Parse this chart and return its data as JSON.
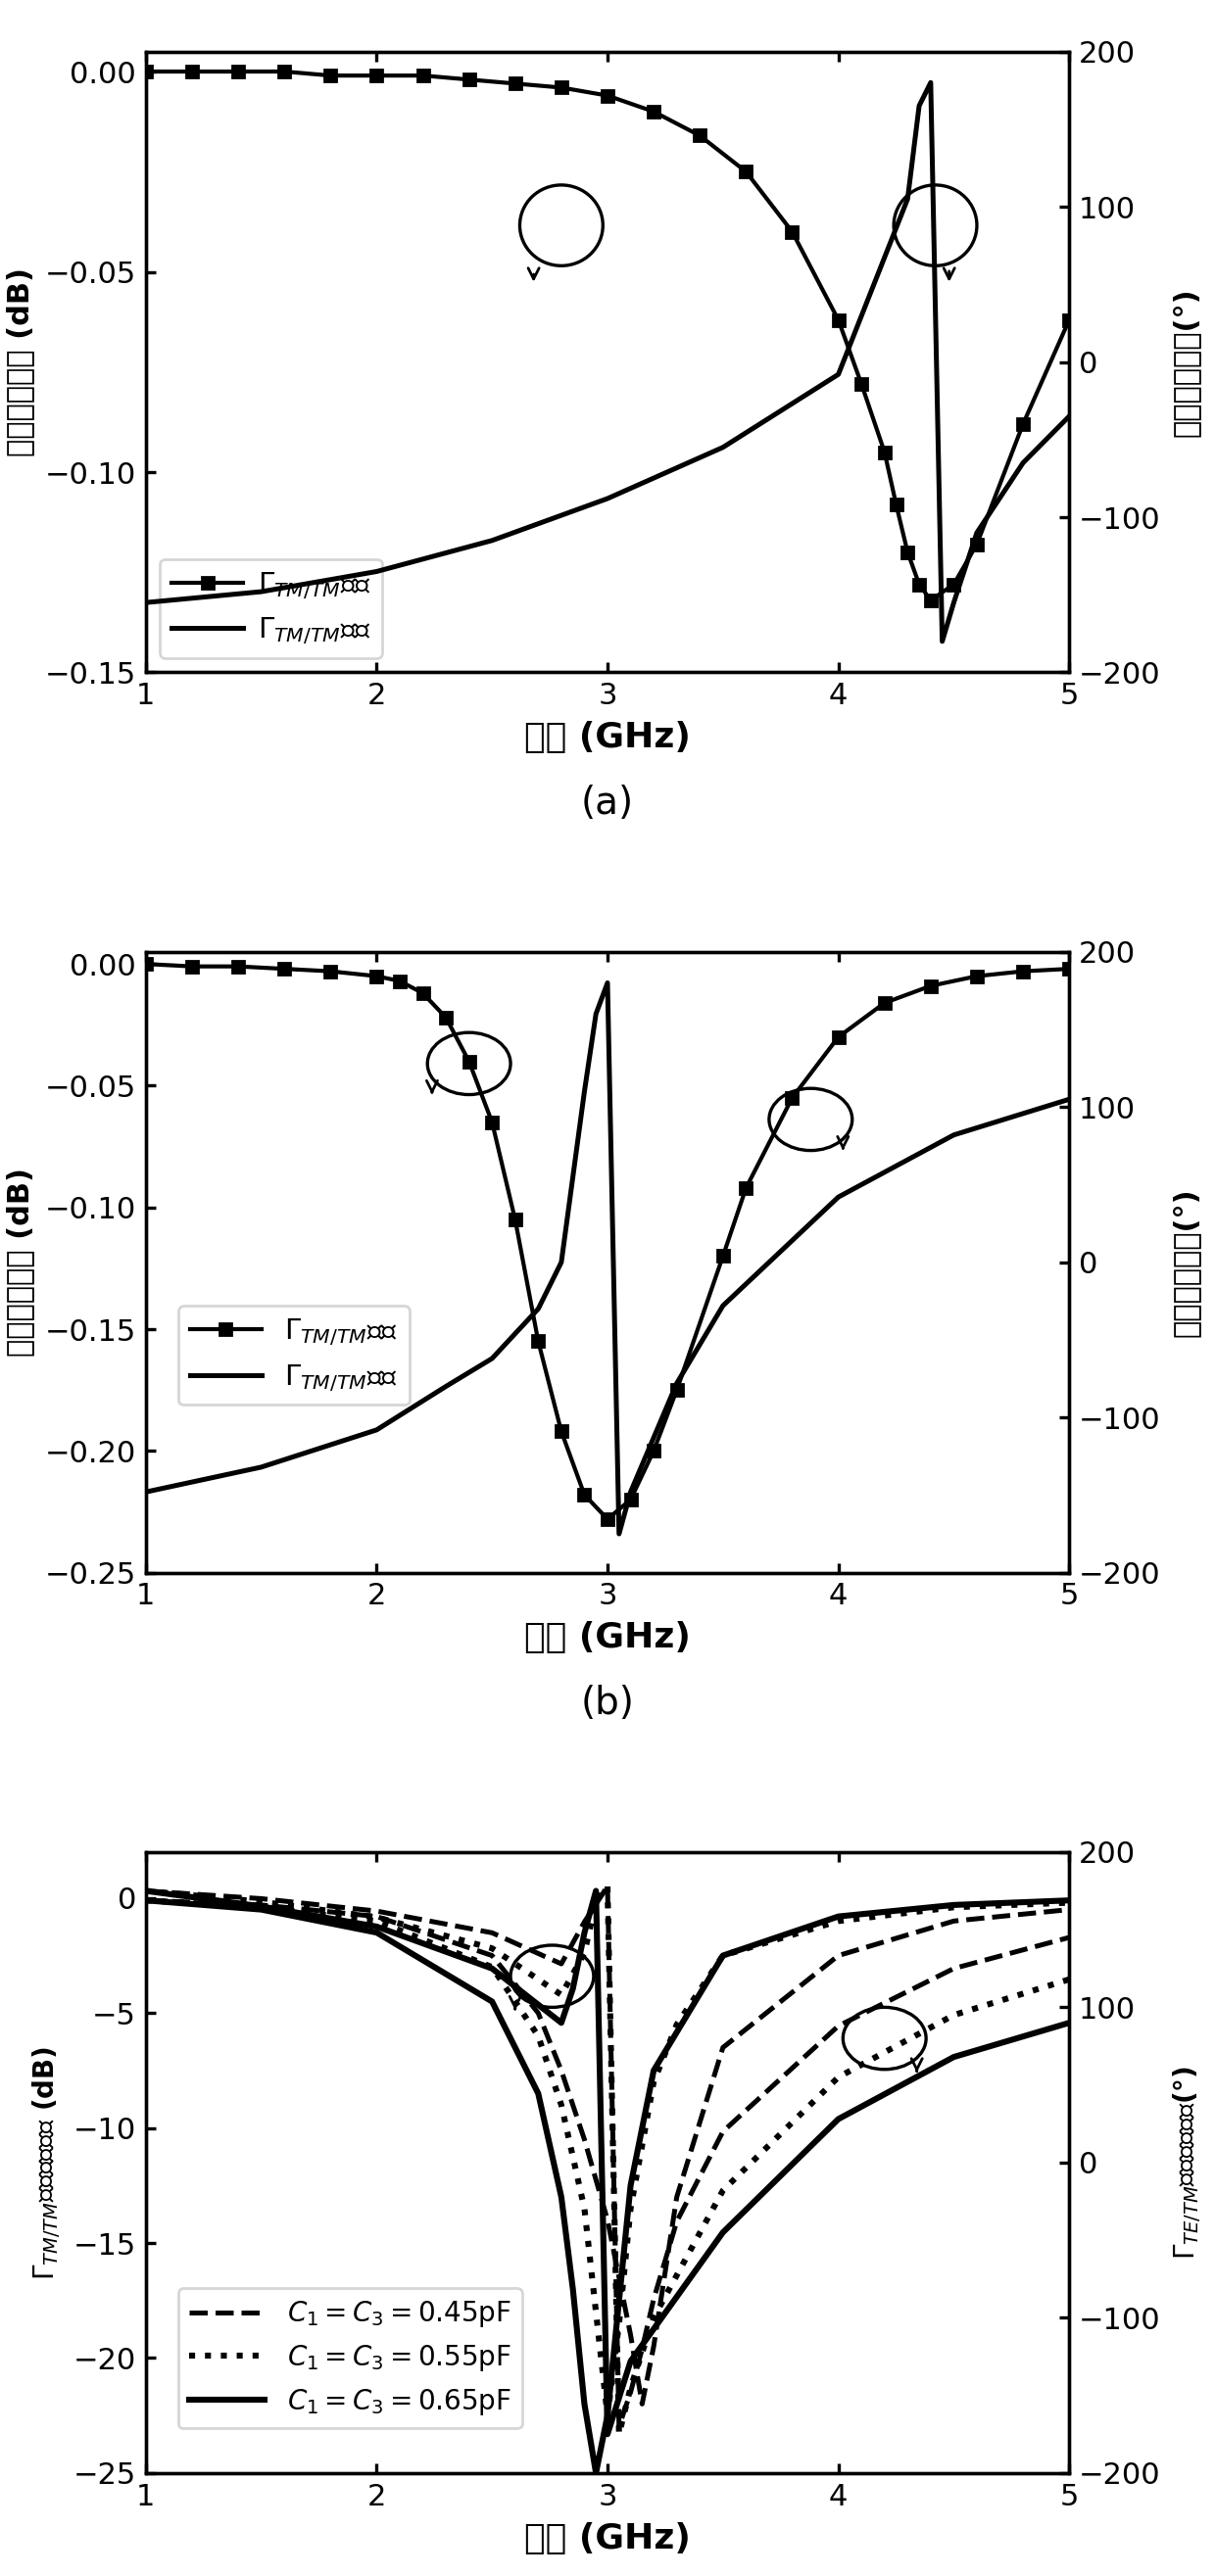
{
  "panel_a": {
    "xlabel": "频率 (GHz)",
    "ylabel_left": "反射系数幅度 (dB)",
    "ylabel_right": "反射系数相位(°)",
    "xlim": [
      1,
      5
    ],
    "ylim_left": [
      -0.15,
      0.005
    ],
    "ylim_right": [
      -200,
      200
    ],
    "yticks_left": [
      -0.15,
      -0.1,
      -0.05,
      0.0
    ],
    "yticks_right": [
      -200,
      -100,
      0,
      100,
      200
    ],
    "mag_x": [
      1.0,
      1.2,
      1.4,
      1.6,
      1.8,
      2.0,
      2.2,
      2.4,
      2.6,
      2.8,
      3.0,
      3.2,
      3.4,
      3.6,
      3.8,
      4.0,
      4.1,
      4.2,
      4.25,
      4.3,
      4.35,
      4.4,
      4.5,
      4.6,
      4.8,
      5.0
    ],
    "mag_y": [
      0.0,
      0.0,
      0.0,
      0.0,
      -0.001,
      -0.001,
      -0.001,
      -0.002,
      -0.003,
      -0.004,
      -0.006,
      -0.01,
      -0.016,
      -0.025,
      -0.04,
      -0.062,
      -0.078,
      -0.095,
      -0.108,
      -0.12,
      -0.128,
      -0.132,
      -0.128,
      -0.118,
      -0.088,
      -0.062
    ],
    "phase_x": [
      1.0,
      1.5,
      2.0,
      2.5,
      3.0,
      3.5,
      4.0,
      4.3,
      4.35,
      4.4,
      4.45,
      4.5,
      4.6,
      4.8,
      5.0
    ],
    "phase_y": [
      -155,
      -148,
      -135,
      -115,
      -88,
      -55,
      -8,
      105,
      165,
      180,
      -180,
      -155,
      -110,
      -65,
      -35
    ],
    "legend_mag": "$\\Gamma_{TM/TM}$幅度",
    "legend_phase": "$\\Gamma_{TM/TM}$相位"
  },
  "panel_b": {
    "xlabel": "频率 (GHz)",
    "ylabel_left": "反射系数幅度 (dB)",
    "ylabel_right": "反射系数相位(°)",
    "xlim": [
      1,
      5
    ],
    "ylim_left": [
      -0.25,
      0.005
    ],
    "ylim_right": [
      -200,
      200
    ],
    "yticks_left": [
      -0.25,
      -0.2,
      -0.15,
      -0.1,
      -0.05,
      0.0
    ],
    "yticks_right": [
      -200,
      -100,
      0,
      100,
      200
    ],
    "mag_x": [
      1.0,
      1.2,
      1.4,
      1.6,
      1.8,
      2.0,
      2.1,
      2.2,
      2.3,
      2.4,
      2.5,
      2.6,
      2.7,
      2.8,
      2.9,
      3.0,
      3.1,
      3.2,
      3.3,
      3.5,
      3.6,
      3.8,
      4.0,
      4.2,
      4.4,
      4.6,
      4.8,
      5.0
    ],
    "mag_y": [
      0.0,
      -0.001,
      -0.001,
      -0.002,
      -0.003,
      -0.005,
      -0.007,
      -0.012,
      -0.022,
      -0.04,
      -0.065,
      -0.105,
      -0.155,
      -0.192,
      -0.218,
      -0.228,
      -0.22,
      -0.2,
      -0.175,
      -0.12,
      -0.092,
      -0.055,
      -0.03,
      -0.016,
      -0.009,
      -0.005,
      -0.003,
      -0.002
    ],
    "phase_x": [
      1.0,
      1.5,
      2.0,
      2.3,
      2.5,
      2.7,
      2.8,
      2.85,
      2.9,
      2.95,
      3.0,
      3.05,
      3.1,
      3.3,
      3.5,
      4.0,
      4.5,
      5.0
    ],
    "phase_y": [
      -148,
      -132,
      -108,
      -80,
      -62,
      -30,
      0,
      55,
      110,
      160,
      180,
      -175,
      -148,
      -78,
      -28,
      42,
      82,
      105
    ],
    "legend_mag": "$\\Gamma_{TM/TM}$幅度",
    "legend_phase": "$\\Gamma_{TM/TM}$相位"
  },
  "panel_c": {
    "xlabel": "频率 (GHz)",
    "ylabel_left": "$\\Gamma_{TM/TM}$反射系数幅度 (dB)",
    "ylabel_right": "$\\Gamma_{TE/TM}$反射系数相位(°)",
    "xlim": [
      1,
      5
    ],
    "ylim_left": [
      -25,
      2
    ],
    "ylim_right": [
      -200,
      200
    ],
    "yticks_left": [
      -25,
      -20,
      -15,
      -10,
      -5,
      0
    ],
    "yticks_right": [
      -200,
      -100,
      0,
      100,
      200
    ],
    "c045_mag_x": [
      1.0,
      1.5,
      2.0,
      2.5,
      2.7,
      2.8,
      2.9,
      3.0,
      3.1,
      3.15,
      3.2,
      3.3,
      3.5,
      4.0,
      4.5,
      5.0
    ],
    "c045_mag_y": [
      -0.1,
      -0.3,
      -0.8,
      -2.5,
      -5.0,
      -7.5,
      -10.5,
      -14.0,
      -19.0,
      -22.0,
      -19.5,
      -13.0,
      -6.5,
      -2.5,
      -1.0,
      -0.5
    ],
    "c055_mag_x": [
      1.0,
      1.5,
      2.0,
      2.5,
      2.7,
      2.8,
      2.9,
      2.95,
      3.0,
      3.05,
      3.1,
      3.2,
      3.3,
      3.5,
      4.0,
      4.5,
      5.0
    ],
    "c055_mag_y": [
      -0.1,
      -0.4,
      -1.0,
      -3.0,
      -6.0,
      -9.0,
      -13.5,
      -18.0,
      -22.5,
      -18.5,
      -13.5,
      -8.0,
      -5.5,
      -2.5,
      -1.0,
      -0.4,
      -0.2
    ],
    "c065_mag_x": [
      1.0,
      1.5,
      2.0,
      2.5,
      2.7,
      2.8,
      2.85,
      2.9,
      2.95,
      3.0,
      3.05,
      3.1,
      3.2,
      3.5,
      4.0,
      4.5,
      5.0
    ],
    "c065_mag_y": [
      -0.1,
      -0.5,
      -1.5,
      -4.5,
      -8.5,
      -13.0,
      -17.0,
      -22.0,
      -25.0,
      -22.5,
      -17.5,
      -12.5,
      -7.5,
      -2.5,
      -0.8,
      -0.3,
      -0.1
    ],
    "c045_phase_x": [
      1.0,
      1.5,
      2.0,
      2.5,
      2.8,
      2.9,
      3.0,
      3.05,
      3.1,
      3.15,
      3.2,
      3.3,
      3.5,
      4.0,
      4.5,
      5.0
    ],
    "c045_phase_y": [
      175,
      170,
      162,
      148,
      128,
      155,
      178,
      -170,
      -148,
      -120,
      -88,
      -38,
      20,
      88,
      125,
      145
    ],
    "c055_phase_x": [
      1.0,
      1.5,
      2.0,
      2.5,
      2.8,
      2.9,
      2.95,
      3.0,
      3.05,
      3.1,
      3.2,
      3.5,
      4.0,
      4.5,
      5.0
    ],
    "c055_phase_y": [
      175,
      168,
      158,
      138,
      108,
      135,
      168,
      178,
      -175,
      -145,
      -100,
      -18,
      55,
      95,
      118
    ],
    "c065_phase_x": [
      1.0,
      1.5,
      2.0,
      2.5,
      2.8,
      2.85,
      2.9,
      2.95,
      3.0,
      3.1,
      3.5,
      4.0,
      4.5,
      5.0
    ],
    "c065_phase_y": [
      175,
      165,
      152,
      125,
      90,
      112,
      148,
      175,
      -175,
      -128,
      -45,
      28,
      68,
      90
    ],
    "legend_045": "$C_1=C_3=0.45\\mathrm{pF}$",
    "legend_055": "$C_1=C_3=0.55\\mathrm{pF}$",
    "legend_065": "$C_1=C_3=0.65\\mathrm{pF}$"
  }
}
